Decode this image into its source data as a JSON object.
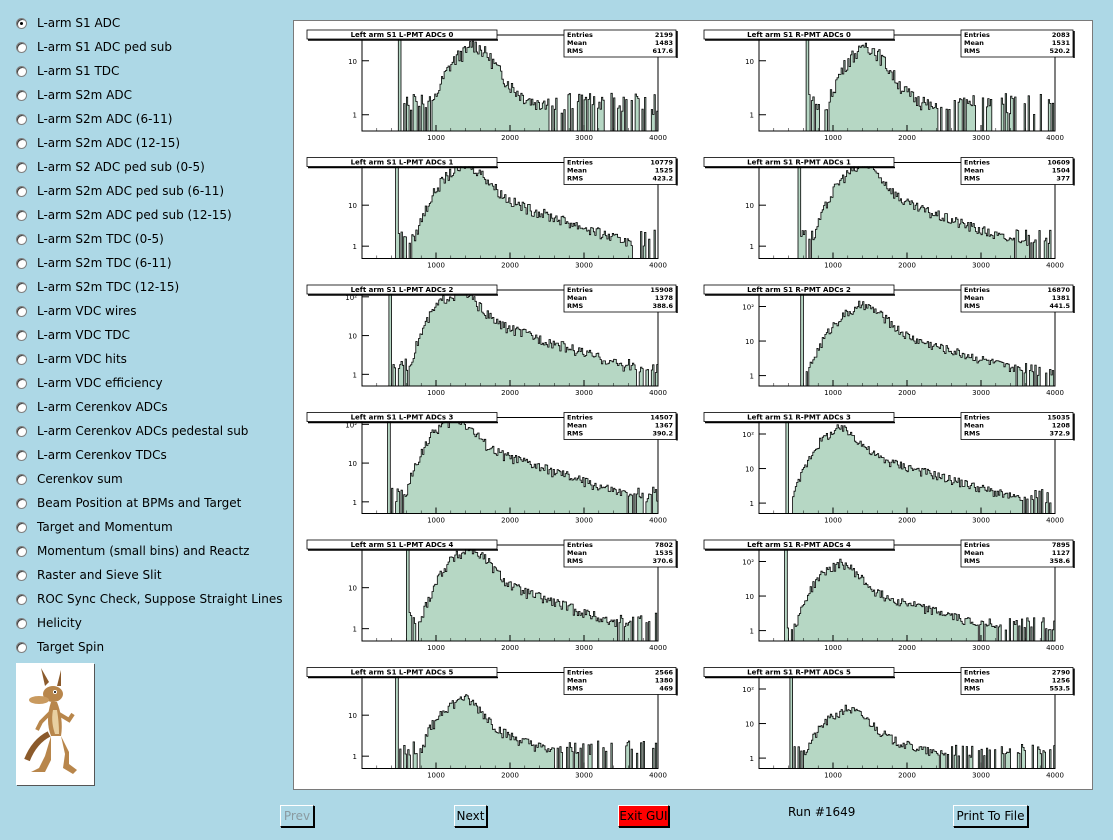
{
  "menu": {
    "items": [
      {
        "label": "L-arm S1 ADC",
        "selected": true
      },
      {
        "label": "L-arm S1 ADC ped sub",
        "selected": false
      },
      {
        "label": "L-arm S1 TDC",
        "selected": false
      },
      {
        "label": "L-arm S2m ADC",
        "selected": false
      },
      {
        "label": "L-arm S2m ADC (6-11)",
        "selected": false
      },
      {
        "label": "L-arm S2m ADC (12-15)",
        "selected": false
      },
      {
        "label": "L-arm S2 ADC ped sub (0-5)",
        "selected": false
      },
      {
        "label": "L-arm S2m ADC ped sub (6-11)",
        "selected": false
      },
      {
        "label": "L-arm S2m ADC ped sub (12-15)",
        "selected": false
      },
      {
        "label": "L-arm S2m TDC (0-5)",
        "selected": false
      },
      {
        "label": "L-arm S2m TDC (6-11)",
        "selected": false
      },
      {
        "label": "L-arm S2m TDC (12-15)",
        "selected": false
      },
      {
        "label": "L-arm VDC wires",
        "selected": false
      },
      {
        "label": "L-arm VDC TDC",
        "selected": false
      },
      {
        "label": "L-arm VDC hits",
        "selected": false
      },
      {
        "label": "L-arm VDC efficiency",
        "selected": false
      },
      {
        "label": "L-arm Cerenkov ADCs",
        "selected": false
      },
      {
        "label": "L-arm Cerenkov ADCs pedestal sub",
        "selected": false
      },
      {
        "label": "L-arm Cerenkov TDCs",
        "selected": false
      },
      {
        "label": "Cerenkov sum",
        "selected": false
      },
      {
        "label": "Beam Position at BPMs and Target",
        "selected": false
      },
      {
        "label": "Target and Momentum",
        "selected": false
      },
      {
        "label": "Momentum (small bins) and Reactz",
        "selected": false
      },
      {
        "label": "Raster and Sieve Slit",
        "selected": false
      },
      {
        "label": "ROC Sync Check, Suppose Straight Lines",
        "selected": false
      },
      {
        "label": "Helicity",
        "selected": false
      },
      {
        "label": "Target Spin",
        "selected": false
      }
    ]
  },
  "buttons": {
    "prev": "Prev",
    "next": "Next",
    "exit": "Exit GUI",
    "print": "Print To File"
  },
  "run_label": "Run #1649",
  "colors": {
    "background": "#add8e6",
    "histogram_fill": "#2e8b57",
    "exit_button": "#ff0000"
  },
  "chart_data": [
    {
      "type": "histogram",
      "title": "Left arm S1 L-PMT ADCs 0",
      "stats": {
        "Entries": "2199",
        "Mean": "1483",
        "RMS": "617.6"
      },
      "x_ticks": [
        "1000",
        "2000",
        "3000",
        "4000"
      ],
      "y_ticks": [
        "1",
        "10"
      ],
      "xlim": [
        0,
        4000
      ],
      "ylog": true,
      "ylim": [
        0.5,
        30
      ],
      "pedestal": 500,
      "peak": 1450,
      "sigma": 230,
      "height": 15,
      "tail": 0.4
    },
    {
      "type": "histogram",
      "title": "Left arm S1 R-PMT ADCs 0",
      "stats": {
        "Entries": "2083",
        "Mean": "1531",
        "RMS": "520.2"
      },
      "x_ticks": [
        "1000",
        "2000",
        "3000",
        "4000"
      ],
      "y_ticks": [
        "1",
        "10"
      ],
      "xlim": [
        0,
        4000
      ],
      "ylog": true,
      "ylim": [
        0.5,
        30
      ],
      "pedestal": 650,
      "peak": 1400,
      "sigma": 220,
      "height": 15,
      "tail": 0.35
    },
    {
      "type": "histogram",
      "title": "Left arm S1 L-PMT ADCs 1",
      "stats": {
        "Entries": "10779",
        "Mean": "1525",
        "RMS": "423.2"
      },
      "x_ticks": [
        "1000",
        "2000",
        "3000",
        "4000"
      ],
      "y_ticks": [
        "1",
        "10"
      ],
      "xlim": [
        0,
        4000
      ],
      "ylog": true,
      "ylim": [
        0.5,
        110
      ],
      "pedestal": 480,
      "peak": 1350,
      "sigma": 230,
      "height": 75,
      "tail": 0.4
    },
    {
      "type": "histogram",
      "title": "Left arm S1 R-PMT ADCs 1",
      "stats": {
        "Entries": "10609",
        "Mean": "1504",
        "RMS": "377"
      },
      "x_ticks": [
        "1000",
        "2000",
        "3000",
        "4000"
      ],
      "y_ticks": [
        "1",
        "10"
      ],
      "xlim": [
        0,
        4000
      ],
      "ylog": true,
      "ylim": [
        0.5,
        110
      ],
      "pedestal": 540,
      "peak": 1350,
      "sigma": 220,
      "height": 75,
      "tail": 0.35
    },
    {
      "type": "histogram",
      "title": "Left arm S1 L-PMT ADCs 2",
      "stats": {
        "Entries": "15908",
        "Mean": "1378",
        "RMS": "388.6"
      },
      "x_ticks": [
        "1000",
        "2000",
        "3000",
        "4000"
      ],
      "y_ticks": [
        "1",
        "10",
        "10²"
      ],
      "xlim": [
        0,
        4000
      ],
      "ylog": true,
      "ylim": [
        0.5,
        150
      ],
      "pedestal": 380,
      "peak": 1250,
      "sigma": 210,
      "height": 110,
      "tail": 0.4
    },
    {
      "type": "histogram",
      "title": "Left arm S1 R-PMT ADCs 2",
      "stats": {
        "Entries": "16870",
        "Mean": "1381",
        "RMS": "441.5"
      },
      "x_ticks": [
        "1000",
        "2000",
        "3000",
        "4000"
      ],
      "y_ticks": [
        "1",
        "10",
        "10²"
      ],
      "xlim": [
        0,
        4000
      ],
      "ylog": true,
      "ylim": [
        0.5,
        300
      ],
      "pedestal": 580,
      "peak": 1350,
      "sigma": 240,
      "height": 80,
      "tail": 0.4
    },
    {
      "type": "histogram",
      "title": "Left arm S1 L-PMT ADCs 3",
      "stats": {
        "Entries": "14507",
        "Mean": "1367",
        "RMS": "390.2"
      },
      "x_ticks": [
        "1000",
        "2000",
        "3000",
        "4000"
      ],
      "y_ticks": [
        "1",
        "10",
        "10²"
      ],
      "xlim": [
        0,
        4000
      ],
      "ylog": true,
      "ylim": [
        0.5,
        150
      ],
      "pedestal": 370,
      "peak": 1200,
      "sigma": 210,
      "height": 110,
      "tail": 0.4
    },
    {
      "type": "histogram",
      "title": "Left arm S1 R-PMT ADCs 3",
      "stats": {
        "Entries": "15035",
        "Mean": "1208",
        "RMS": "372.9"
      },
      "x_ticks": [
        "1000",
        "2000",
        "3000",
        "4000"
      ],
      "y_ticks": [
        "1",
        "10",
        "10²"
      ],
      "xlim": [
        0,
        4000
      ],
      "ylog": true,
      "ylim": [
        0.5,
        300
      ],
      "pedestal": 380,
      "peak": 1050,
      "sigma": 200,
      "height": 110,
      "tail": 0.4
    },
    {
      "type": "histogram",
      "title": "Left arm S1 L-PMT ADCs 4",
      "stats": {
        "Entries": "7802",
        "Mean": "1535",
        "RMS": "370.6"
      },
      "x_ticks": [
        "1000",
        "2000",
        "3000",
        "4000"
      ],
      "y_ticks": [
        "1",
        "10"
      ],
      "xlim": [
        0,
        4000
      ],
      "ylog": true,
      "ylim": [
        0.5,
        110
      ],
      "pedestal": 620,
      "peak": 1400,
      "sigma": 220,
      "height": 70,
      "tail": 0.35
    },
    {
      "type": "histogram",
      "title": "Left arm S1 R-PMT ADCs 4",
      "stats": {
        "Entries": "7895",
        "Mean": "1127",
        "RMS": "358.6"
      },
      "x_ticks": [
        "1000",
        "2000",
        "3000",
        "4000"
      ],
      "y_ticks": [
        "1",
        "10",
        "10²"
      ],
      "xlim": [
        0,
        4000
      ],
      "ylog": true,
      "ylim": [
        0.5,
        300
      ],
      "pedestal": 370,
      "peak": 1050,
      "sigma": 200,
      "height": 70,
      "tail": 0.35
    },
    {
      "type": "histogram",
      "title": "Left arm S1 L-PMT ADCs 5",
      "stats": {
        "Entries": "2566",
        "Mean": "1380",
        "RMS": "469"
      },
      "x_ticks": [
        "1000",
        "2000",
        "3000",
        "4000"
      ],
      "y_ticks": [
        "1",
        "10"
      ],
      "xlim": [
        0,
        4000
      ],
      "ylog": true,
      "ylim": [
        0.5,
        110
      ],
      "pedestal": 480,
      "peak": 1300,
      "sigma": 220,
      "height": 20,
      "tail": 0.4
    },
    {
      "type": "histogram",
      "title": "Left arm S1 R-PMT ADCs 5",
      "stats": {
        "Entries": "2790",
        "Mean": "1256",
        "RMS": "553.5"
      },
      "x_ticks": [
        "1000",
        "2000",
        "3000",
        "4000"
      ],
      "y_ticks": [
        "1",
        "10",
        "10²"
      ],
      "xlim": [
        0,
        4000
      ],
      "ylog": true,
      "ylim": [
        0.5,
        300
      ],
      "pedestal": 430,
      "peak": 1150,
      "sigma": 230,
      "height": 20,
      "tail": 0.4
    }
  ]
}
